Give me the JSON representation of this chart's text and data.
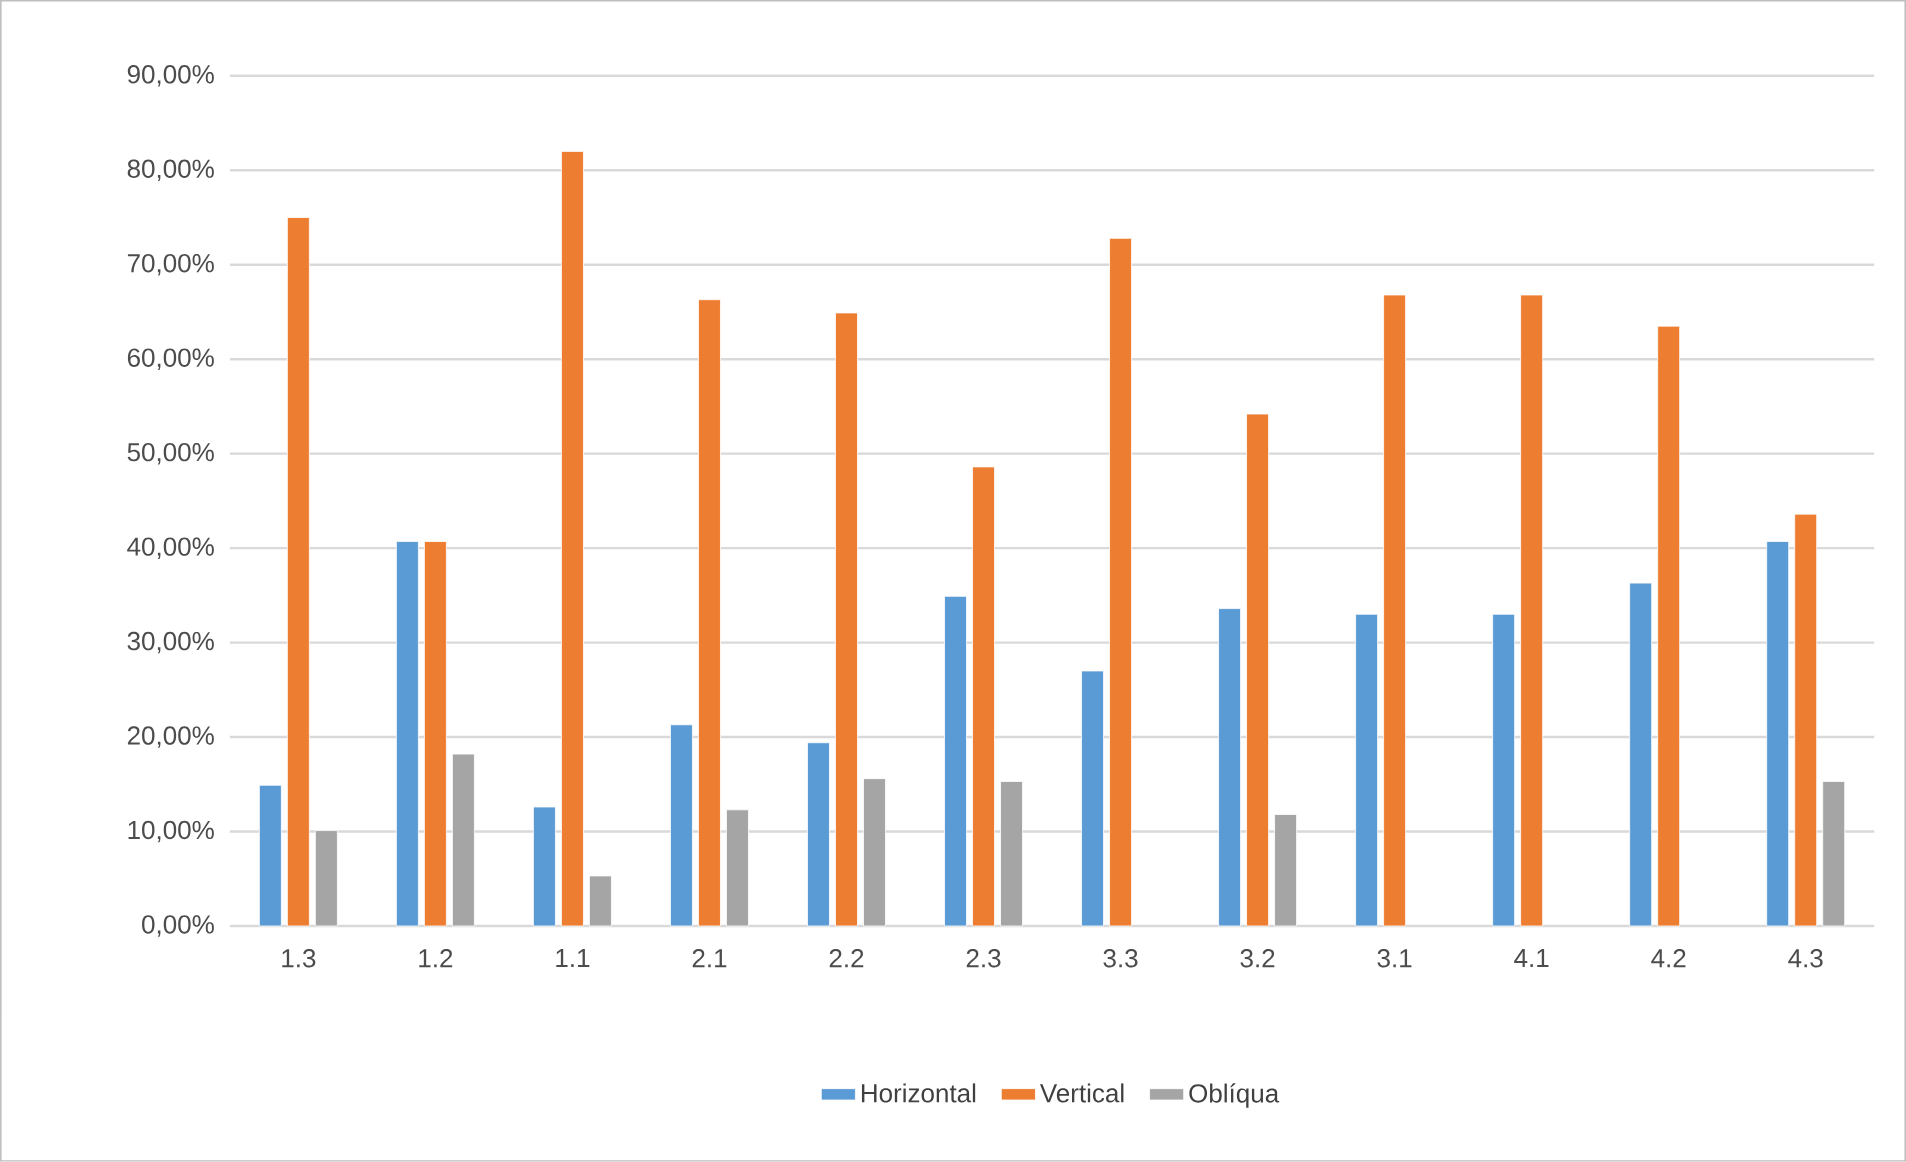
{
  "chart_data": {
    "type": "bar",
    "categories": [
      "1.3",
      "1.2",
      "1.1",
      "2.1",
      "2.2",
      "2.3",
      "3.3",
      "3.2",
      "3.1",
      "4.1",
      "4.2",
      "4.3"
    ],
    "series": [
      {
        "name": "Horizontal",
        "color": "#5b9bd5",
        "values": [
          14.9,
          40.7,
          12.6,
          21.3,
          19.4,
          34.9,
          27.0,
          33.6,
          33.0,
          33.0,
          36.3,
          40.7
        ]
      },
      {
        "name": "Vertical",
        "color": "#ed7d31",
        "values": [
          75.0,
          40.7,
          82.0,
          66.3,
          64.9,
          48.6,
          72.8,
          54.2,
          66.8,
          66.8,
          63.5,
          43.6
        ]
      },
      {
        "name": "Oblíqua",
        "color": "#a5a5a5",
        "values": [
          10.1,
          18.2,
          5.3,
          12.3,
          15.6,
          15.3,
          null,
          11.8,
          null,
          null,
          null,
          15.3
        ]
      }
    ],
    "ylim": [
      0,
      90
    ],
    "yticks": [
      {
        "value": 0,
        "label": "0,00%"
      },
      {
        "value": 10,
        "label": "10,00%"
      },
      {
        "value": 20,
        "label": "20,00%"
      },
      {
        "value": 30,
        "label": "30,00%"
      },
      {
        "value": 40,
        "label": "40,00%"
      },
      {
        "value": 50,
        "label": "50,00%"
      },
      {
        "value": 60,
        "label": "60,00%"
      },
      {
        "value": 70,
        "label": "70,00%"
      },
      {
        "value": 80,
        "label": "80,00%"
      },
      {
        "value": 90,
        "label": "90,00%"
      }
    ],
    "grid": "y",
    "legend": "bottom"
  }
}
